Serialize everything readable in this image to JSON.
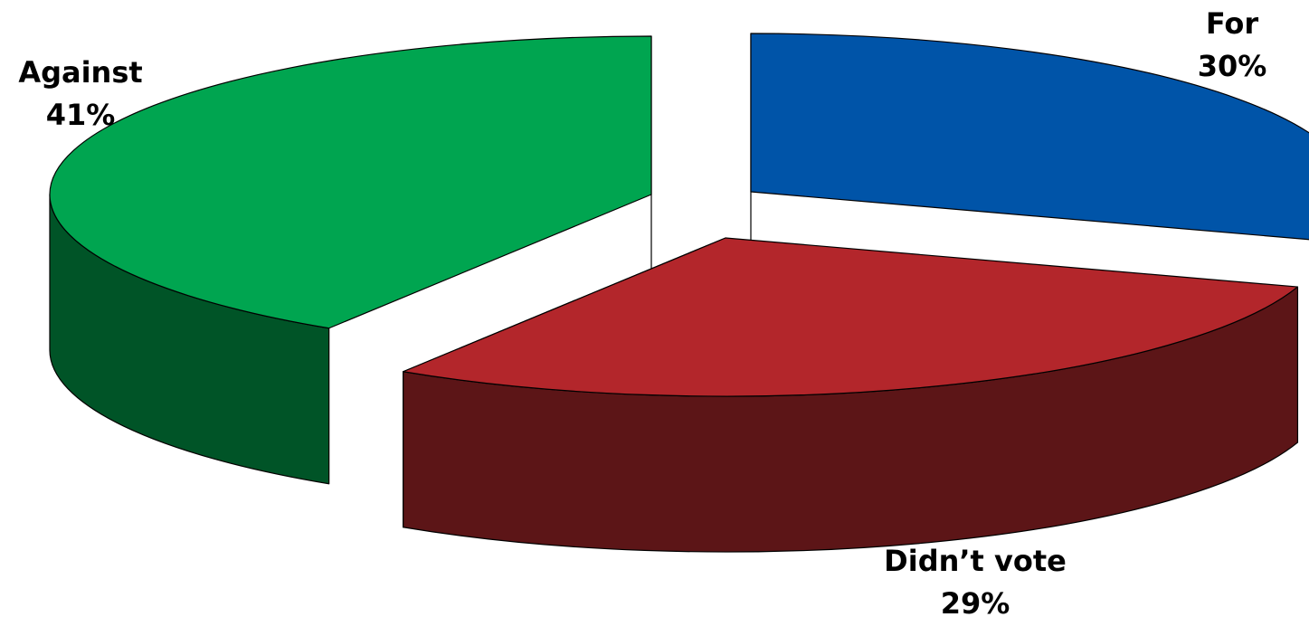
{
  "chart_data": {
    "type": "pie",
    "is_3d": true,
    "exploded": true,
    "slices": [
      {
        "label": "For",
        "percent_label": "30%",
        "value": 30,
        "color": "#0054a8",
        "side_color": "#00285a"
      },
      {
        "label": "Didn’t vote",
        "percent_label": "29%",
        "value": 29,
        "color": "#b3262b",
        "side_color": "#5c1517"
      },
      {
        "label": "Against",
        "percent_label": "41%",
        "value": 41,
        "color": "#00a550",
        "side_color": "#005427"
      }
    ]
  }
}
